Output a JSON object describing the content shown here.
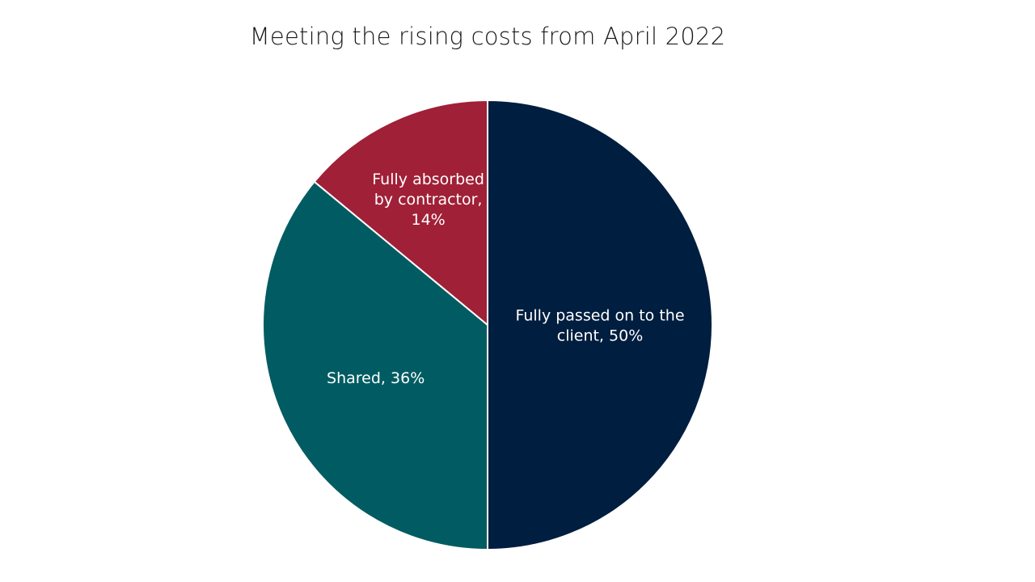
{
  "chart_data": {
    "type": "pie",
    "title": "Meeting the rising costs from April 2022",
    "slices": [
      {
        "label_lines": [
          "Fully passed on to the",
          "client, 50%"
        ],
        "value": 50,
        "color": "#001E3F"
      },
      {
        "label_lines": [
          "Shared, 36%"
        ],
        "value": 36,
        "color": "#005C62"
      },
      {
        "label_lines": [
          "Fully absorbed",
          "by contractor,",
          "14%"
        ],
        "value": 14,
        "color": "#A02037"
      }
    ]
  }
}
